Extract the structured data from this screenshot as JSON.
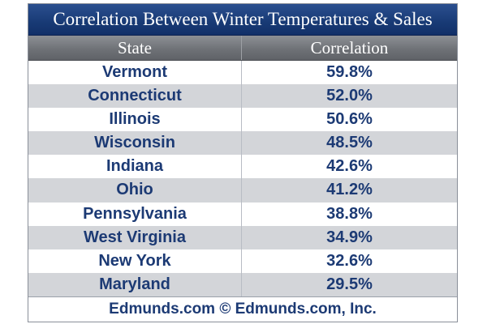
{
  "chart_data": {
    "type": "table",
    "title": "Correlation Between Winter Temperatures & Sales",
    "columns": [
      "State",
      "Correlation"
    ],
    "rows": [
      {
        "state": "Vermont",
        "correlation": "59.8%"
      },
      {
        "state": "Connecticut",
        "correlation": "52.0%"
      },
      {
        "state": "Illinois",
        "correlation": "50.6%"
      },
      {
        "state": "Wisconsin",
        "correlation": "48.5%"
      },
      {
        "state": "Indiana",
        "correlation": "42.6%"
      },
      {
        "state": "Ohio",
        "correlation": "41.2%"
      },
      {
        "state": "Pennsylvania",
        "correlation": "38.8%"
      },
      {
        "state": "West Virginia",
        "correlation": "34.9%"
      },
      {
        "state": "New York",
        "correlation": "32.6%"
      },
      {
        "state": "Maryland",
        "correlation": "29.5%"
      }
    ],
    "footer": "Edmunds.com © Edmunds.com, Inc."
  },
  "colors": {
    "title_bg": "#183a75",
    "header_bg": "#6f7277",
    "row_alt": "#d3d5d9",
    "text": "#1c3a74"
  }
}
